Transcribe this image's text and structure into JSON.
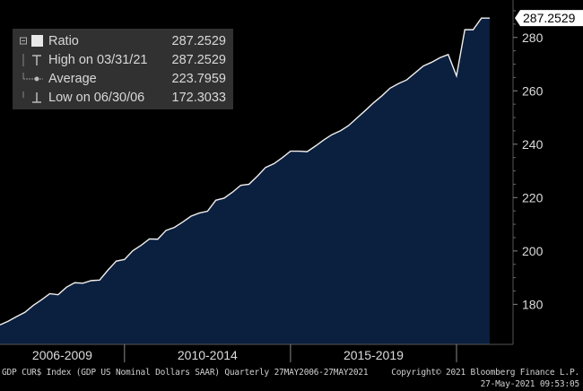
{
  "chart_data": {
    "type": "area",
    "title": "",
    "xlabel": "",
    "ylabel": "",
    "ylim": [
      165,
      290
    ],
    "y_ticks": [
      180,
      200,
      220,
      240,
      260,
      280
    ],
    "x_periods": [
      "2006-2009",
      "2010-2014",
      "2015-2019"
    ],
    "x_quarters": [
      "Q2 2006",
      "Q3 2006",
      "Q4 2006",
      "Q1 2007",
      "Q2 2007",
      "Q3 2007",
      "Q4 2007",
      "Q1 2008",
      "Q2 2008",
      "Q3 2008",
      "Q4 2008",
      "Q1 2009",
      "Q2 2009",
      "Q3 2009",
      "Q4 2009",
      "Q1 2010",
      "Q2 2010",
      "Q3 2010",
      "Q4 2010",
      "Q1 2011",
      "Q2 2011",
      "Q3 2011",
      "Q4 2011",
      "Q1 2012",
      "Q2 2012",
      "Q3 2012",
      "Q4 2012",
      "Q1 2013",
      "Q2 2013",
      "Q3 2013",
      "Q4 2013",
      "Q1 2014",
      "Q2 2014",
      "Q3 2014",
      "Q4 2014",
      "Q1 2015",
      "Q2 2015",
      "Q3 2015",
      "Q4 2015",
      "Q1 2016",
      "Q2 2016",
      "Q3 2016",
      "Q4 2016",
      "Q1 2017",
      "Q2 2017",
      "Q3 2017",
      "Q4 2017",
      "Q1 2018",
      "Q2 2018",
      "Q3 2018",
      "Q4 2018",
      "Q1 2019",
      "Q2 2019",
      "Q3 2019",
      "Q4 2019",
      "Q1 2020",
      "Q2 2020",
      "Q3 2020",
      "Q4 2020",
      "Q1 2021"
    ],
    "series": [
      {
        "name": "Ratio",
        "values": [
          172.3,
          173.7,
          175.4,
          177.0,
          179.6,
          181.7,
          184.0,
          183.6,
          186.4,
          188.1,
          187.9,
          188.9,
          189.1,
          192.8,
          196.2,
          196.8,
          200.1,
          202.1,
          204.5,
          204.4,
          207.7,
          208.8,
          210.8,
          213.0,
          214.2,
          214.9,
          219.0,
          219.8,
          222.0,
          224.6,
          225.0,
          228.0,
          231.3,
          232.7,
          234.9,
          237.4,
          237.4,
          237.2,
          239.3,
          241.6,
          243.6,
          245.0,
          247.0,
          249.8,
          252.6,
          255.5,
          258.1,
          261.0,
          262.7,
          264.1,
          266.7,
          269.3,
          270.7,
          272.4,
          273.6,
          265.6,
          282.9,
          282.9,
          287.2529,
          287.2529
        ],
        "color": "#0b1f3f",
        "line_color": "#f0f0f0"
      }
    ],
    "legend": {
      "placement": "top-left",
      "rows": [
        {
          "label": "Ratio",
          "value": "287.2529",
          "icon": "filled-square-icon"
        },
        {
          "label": "High on 03/31/21",
          "value": "287.2529",
          "icon": "high-marker-icon"
        },
        {
          "label": "Average",
          "value": "223.7959",
          "icon": "average-marker-icon"
        },
        {
          "label": "Low on 06/30/06",
          "value": "172.3033",
          "icon": "low-marker-icon"
        }
      ]
    },
    "last_value_label": "287.2529",
    "grid": false
  },
  "colors": {
    "background": "#000000",
    "plot_border": "#555555",
    "area_fill": "#0b1f3f",
    "line": "#f0f0f0",
    "last_box": "#ffffff"
  },
  "footer": {
    "left": "GDP CUR$ Index (GDP US Nominal Dollars SAAR)  Quarterly 27MAY2006-27MAY2021",
    "right": "Copyright© 2021 Bloomberg Finance L.P.",
    "timestamp": "27-May-2021 09:53:05"
  }
}
